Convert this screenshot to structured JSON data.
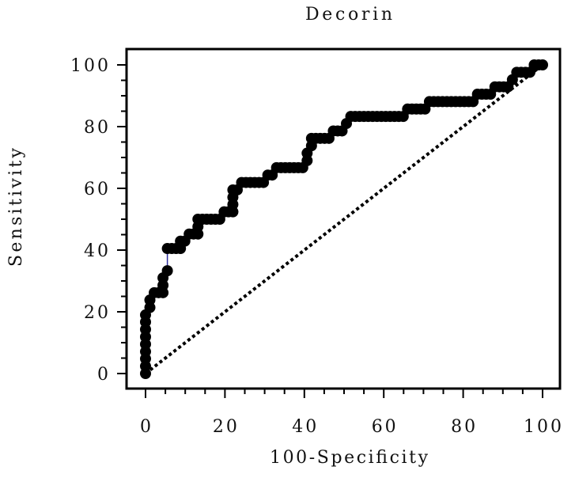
{
  "chart_data": {
    "type": "line",
    "title": "Decorin",
    "xlabel": "100-Specificity",
    "ylabel": "Sensitivity",
    "xlim": [
      0,
      100
    ],
    "ylim": [
      0,
      100
    ],
    "xticks": [
      0,
      20,
      40,
      60,
      80,
      100
    ],
    "yticks": [
      0,
      20,
      40,
      60,
      80,
      100
    ],
    "minor_tick_step": 5,
    "grid": false,
    "series": [
      {
        "color": "#000000",
        "line_color": "#2e2e9e",
        "points": [
          [
            0,
            0
          ],
          [
            0,
            2.4
          ],
          [
            0,
            4.8
          ],
          [
            0,
            7.1
          ],
          [
            0,
            9.5
          ],
          [
            0,
            11.9
          ],
          [
            0,
            14.3
          ],
          [
            0,
            16.7
          ],
          [
            0,
            19.0
          ],
          [
            1.1,
            21.4
          ],
          [
            1.1,
            23.8
          ],
          [
            2.2,
            26.2
          ],
          [
            3.3,
            26.2
          ],
          [
            4.4,
            26.2
          ],
          [
            4.4,
            28.6
          ],
          [
            4.4,
            31.0
          ],
          [
            5.5,
            33.3
          ],
          [
            5.5,
            40.5
          ],
          [
            6.6,
            40.5
          ],
          [
            7.7,
            40.5
          ],
          [
            8.8,
            40.5
          ],
          [
            8.8,
            42.9
          ],
          [
            9.9,
            42.9
          ],
          [
            11.0,
            45.2
          ],
          [
            12.1,
            45.2
          ],
          [
            13.2,
            45.2
          ],
          [
            13.2,
            47.6
          ],
          [
            13.2,
            50.0
          ],
          [
            14.3,
            50.0
          ],
          [
            15.4,
            50.0
          ],
          [
            16.5,
            50.0
          ],
          [
            17.6,
            50.0
          ],
          [
            18.7,
            50.0
          ],
          [
            19.8,
            52.4
          ],
          [
            20.9,
            52.4
          ],
          [
            22.0,
            52.4
          ],
          [
            22.0,
            54.8
          ],
          [
            22.0,
            57.1
          ],
          [
            22.0,
            59.5
          ],
          [
            23.1,
            59.5
          ],
          [
            24.2,
            61.9
          ],
          [
            25.3,
            61.9
          ],
          [
            26.4,
            61.9
          ],
          [
            27.5,
            61.9
          ],
          [
            28.6,
            61.9
          ],
          [
            29.7,
            61.9
          ],
          [
            30.8,
            64.3
          ],
          [
            31.9,
            64.3
          ],
          [
            33.0,
            66.7
          ],
          [
            34.1,
            66.7
          ],
          [
            35.2,
            66.7
          ],
          [
            36.3,
            66.7
          ],
          [
            37.4,
            66.7
          ],
          [
            38.5,
            66.7
          ],
          [
            39.6,
            66.7
          ],
          [
            40.7,
            69.0
          ],
          [
            40.7,
            71.4
          ],
          [
            41.8,
            73.8
          ],
          [
            41.8,
            76.2
          ],
          [
            42.9,
            76.2
          ],
          [
            44.0,
            76.2
          ],
          [
            45.1,
            76.2
          ],
          [
            46.2,
            76.2
          ],
          [
            47.3,
            78.6
          ],
          [
            48.4,
            78.6
          ],
          [
            49.5,
            78.6
          ],
          [
            50.6,
            81.0
          ],
          [
            51.7,
            83.3
          ],
          [
            52.8,
            83.3
          ],
          [
            53.9,
            83.3
          ],
          [
            55.0,
            83.3
          ],
          [
            56.1,
            83.3
          ],
          [
            57.2,
            83.3
          ],
          [
            58.3,
            83.3
          ],
          [
            59.4,
            83.3
          ],
          [
            60.5,
            83.3
          ],
          [
            61.6,
            83.3
          ],
          [
            62.7,
            83.3
          ],
          [
            63.8,
            83.3
          ],
          [
            64.9,
            83.3
          ],
          [
            66.0,
            85.7
          ],
          [
            67.1,
            85.7
          ],
          [
            68.2,
            85.7
          ],
          [
            69.3,
            85.7
          ],
          [
            70.4,
            85.7
          ],
          [
            71.5,
            88.1
          ],
          [
            72.6,
            88.1
          ],
          [
            73.7,
            88.1
          ],
          [
            74.8,
            88.1
          ],
          [
            75.9,
            88.1
          ],
          [
            77.0,
            88.1
          ],
          [
            78.1,
            88.1
          ],
          [
            79.2,
            88.1
          ],
          [
            80.3,
            88.1
          ],
          [
            81.4,
            88.1
          ],
          [
            82.5,
            88.1
          ],
          [
            83.6,
            90.5
          ],
          [
            84.7,
            90.5
          ],
          [
            85.8,
            90.5
          ],
          [
            86.9,
            90.5
          ],
          [
            88.0,
            92.9
          ],
          [
            89.1,
            92.9
          ],
          [
            90.2,
            92.9
          ],
          [
            91.3,
            92.9
          ],
          [
            92.4,
            95.2
          ],
          [
            93.5,
            97.6
          ],
          [
            94.6,
            97.6
          ],
          [
            95.7,
            97.6
          ],
          [
            96.8,
            97.6
          ],
          [
            97.9,
            100.0
          ],
          [
            99.0,
            100.0
          ],
          [
            100.0,
            100.0
          ]
        ]
      }
    ],
    "reference_line": {
      "points": [
        [
          0,
          0
        ],
        [
          100,
          100
        ]
      ],
      "color": "#000000"
    }
  }
}
